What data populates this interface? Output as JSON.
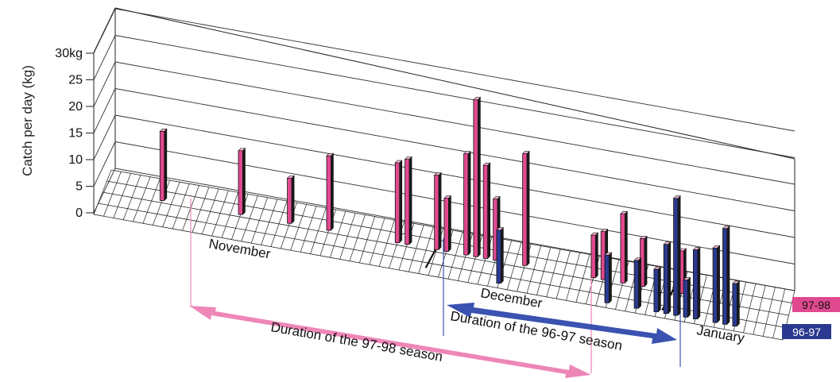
{
  "chart_data": {
    "type": "bar",
    "ylabel": "Catch per day (kg)",
    "yunit": "kg",
    "ylim": [
      0,
      30
    ],
    "yticks": [
      0,
      5,
      10,
      15,
      20,
      25,
      30
    ],
    "months": [
      "November",
      "December",
      "January"
    ],
    "grid": true,
    "legend_position": "bottom-right",
    "colors": {
      "97-98": "#e0498f",
      "96-97": "#2b3a8f",
      "arrow_97_98": "#ee86b8",
      "arrow_96_97": "#3a52b0"
    },
    "series": [
      {
        "name": "97-98",
        "points": [
          {
            "day": 6,
            "value": 13
          },
          {
            "day": 14,
            "value": 12
          },
          {
            "day": 19,
            "value": 8.5
          },
          {
            "day": 23,
            "value": 14
          },
          {
            "day": 30,
            "value": 15
          },
          {
            "day": 31,
            "value": 16
          },
          {
            "day": 34,
            "value": 14
          },
          {
            "day": 35,
            "value": 10
          },
          {
            "day": 37,
            "value": 19
          },
          {
            "day": 38,
            "value": 29.5
          },
          {
            "day": 39,
            "value": 17.5
          },
          {
            "day": 40,
            "value": 11.5
          },
          {
            "day": 43,
            "value": 21
          },
          {
            "day": 50,
            "value": 8
          },
          {
            "day": 51,
            "value": 9
          },
          {
            "day": 53,
            "value": 13
          },
          {
            "day": 55,
            "value": 9
          },
          {
            "day": 59,
            "value": 8
          }
        ]
      },
      {
        "name": "96-97",
        "points": [
          {
            "day": 41,
            "value": 10
          },
          {
            "day": 52,
            "value": 9
          },
          {
            "day": 55,
            "value": 9
          },
          {
            "day": 57,
            "value": 8
          },
          {
            "day": 58,
            "value": 13
          },
          {
            "day": 59,
            "value": 22
          },
          {
            "day": 60,
            "value": 7
          },
          {
            "day": 61,
            "value": 13
          },
          {
            "day": 63,
            "value": 14
          },
          {
            "day": 64,
            "value": 18
          },
          {
            "day": 65,
            "value": 8
          }
        ]
      }
    ],
    "annotations": {
      "season_97_98": "Duration of the 97-98 season",
      "season_96_97": "Duration of the 96-97 season"
    }
  }
}
